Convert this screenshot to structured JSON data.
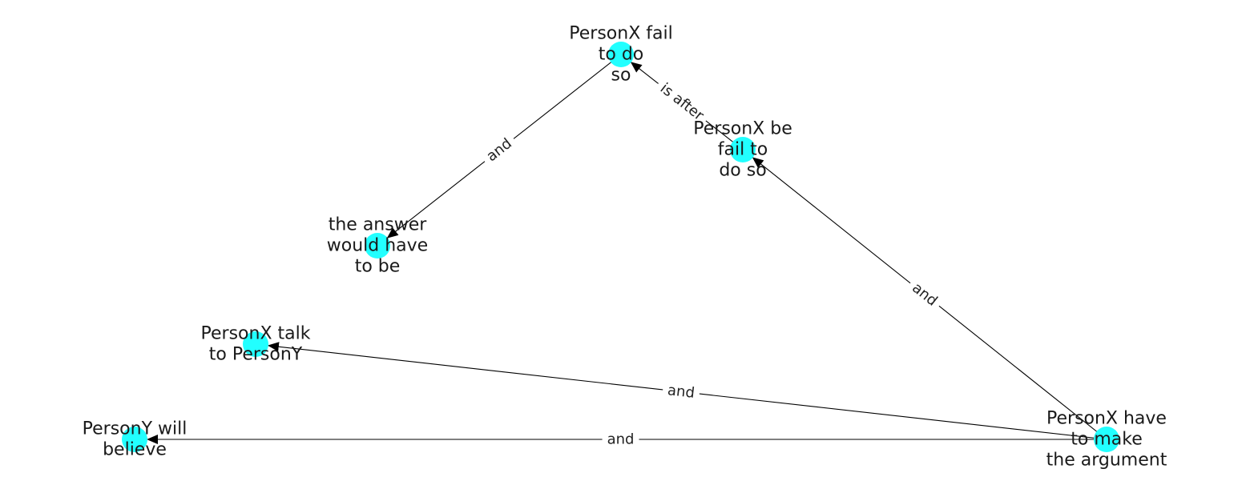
{
  "diagram": {
    "type": "directed-graph",
    "colors": {
      "node_fill": "#22ffff",
      "edge_stroke": "#000000",
      "label_text": "#1a1a1a",
      "background": "#ffffff"
    },
    "nodes": [
      {
        "id": "fail-to-do-so",
        "lines": [
          "PersonX fail",
          "to do",
          "so"
        ]
      },
      {
        "id": "be-fail-to-do-so",
        "lines": [
          "PersonX be",
          "fail to",
          "do so"
        ]
      },
      {
        "id": "answer-would-have-to-be",
        "lines": [
          "the answer",
          "would have",
          "to be"
        ]
      },
      {
        "id": "talk-to-persony",
        "lines": [
          "PersonX talk",
          "to PersonY"
        ]
      },
      {
        "id": "persony-will-believe",
        "lines": [
          "PersonY will",
          "believe"
        ]
      },
      {
        "id": "have-to-make-argument",
        "lines": [
          "PersonX have",
          "to make",
          "the argument"
        ]
      }
    ],
    "edges": [
      {
        "id": "e1",
        "source": "fail-to-do-so",
        "target": "answer-would-have-to-be",
        "label": "and"
      },
      {
        "id": "e2",
        "source": "be-fail-to-do-so",
        "target": "fail-to-do-so",
        "label": "is after"
      },
      {
        "id": "e3",
        "source": "have-to-make-argument",
        "target": "be-fail-to-do-so",
        "label": "and"
      },
      {
        "id": "e4",
        "source": "have-to-make-argument",
        "target": "talk-to-persony",
        "label": "and"
      },
      {
        "id": "e5",
        "source": "have-to-make-argument",
        "target": "persony-will-believe",
        "label": "and"
      }
    ]
  }
}
